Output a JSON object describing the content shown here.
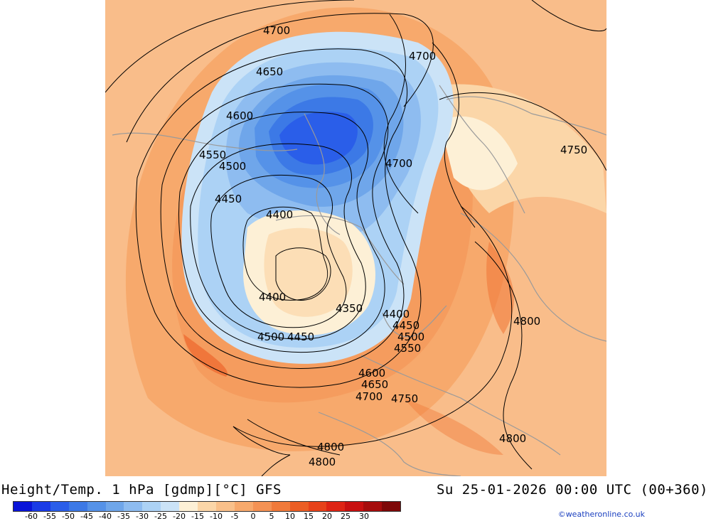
{
  "title": "Height/Temp. 1 hPa [gdmp][°C] GFS",
  "valid_time": "Su 25-01-2026 00:00 UTC (00+360)",
  "credit": "©weatheronline.co.uk",
  "colorbar": {
    "colors": [
      "#0a14d8",
      "#1a3be6",
      "#2a5ee9",
      "#3c79e6",
      "#5592e8",
      "#6fa6ea",
      "#8ebcf0",
      "#acd2f5",
      "#cbe3f7",
      "#fdf0d6",
      "#fbd6a8",
      "#f9c08a",
      "#f7a96c",
      "#f49254",
      "#f07a3a",
      "#ec5e24",
      "#e7421a",
      "#de2414",
      "#c81010",
      "#a60c0c",
      "#7e0808"
    ],
    "tick_labels": [
      "-60",
      "-55",
      "-50",
      "-45",
      "-40",
      "-35",
      "-30",
      "-25",
      "-20",
      "-15",
      "-10",
      "-5",
      "0",
      "5",
      "10",
      "15",
      "20",
      "25",
      "30"
    ]
  },
  "map": {
    "contour_labels": [
      "4700",
      "4700",
      "4650",
      "4600",
      "4550",
      "4500",
      "4450",
      "4400",
      "4750",
      "4700",
      "4400",
      "4350",
      "4400",
      "4450",
      "4500",
      "4500",
      "4450",
      "4550",
      "4800",
      "4600",
      "4650",
      "4700",
      "4750",
      "4800",
      "4800",
      "4800"
    ]
  }
}
